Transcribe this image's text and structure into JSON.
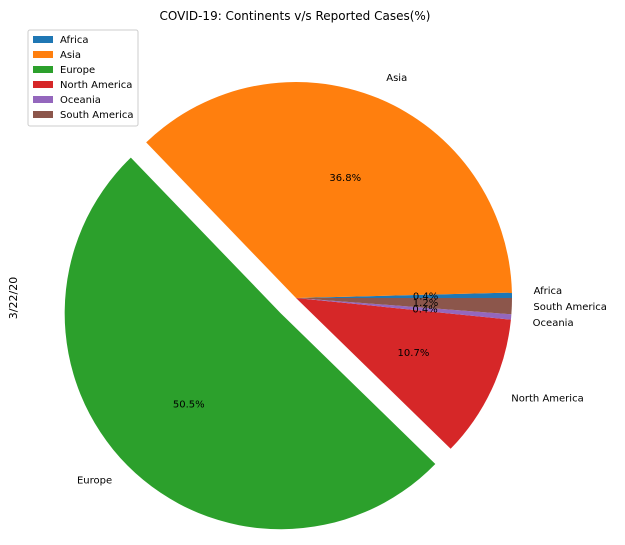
{
  "chart_data": {
    "type": "pie",
    "title": "COVID-19: Continents v/s Reported Cases(%)",
    "ylabel": "3/22/20",
    "legend_position": "top-left",
    "categories": [
      "Africa",
      "Asia",
      "Europe",
      "North America",
      "Oceania",
      "South America"
    ],
    "values": [
      0.4,
      36.8,
      50.5,
      10.7,
      0.4,
      1.2
    ],
    "percent_labels": [
      "0.4%",
      "36.8%",
      "50.5%",
      "10.7%",
      "0.4%",
      "1.2%"
    ],
    "colors": [
      "#1f77b4",
      "#ff7f0e",
      "#2ca02c",
      "#d62728",
      "#9467bd",
      "#8c564b"
    ],
    "exploded": [
      false,
      false,
      true,
      false,
      false,
      false
    ]
  }
}
